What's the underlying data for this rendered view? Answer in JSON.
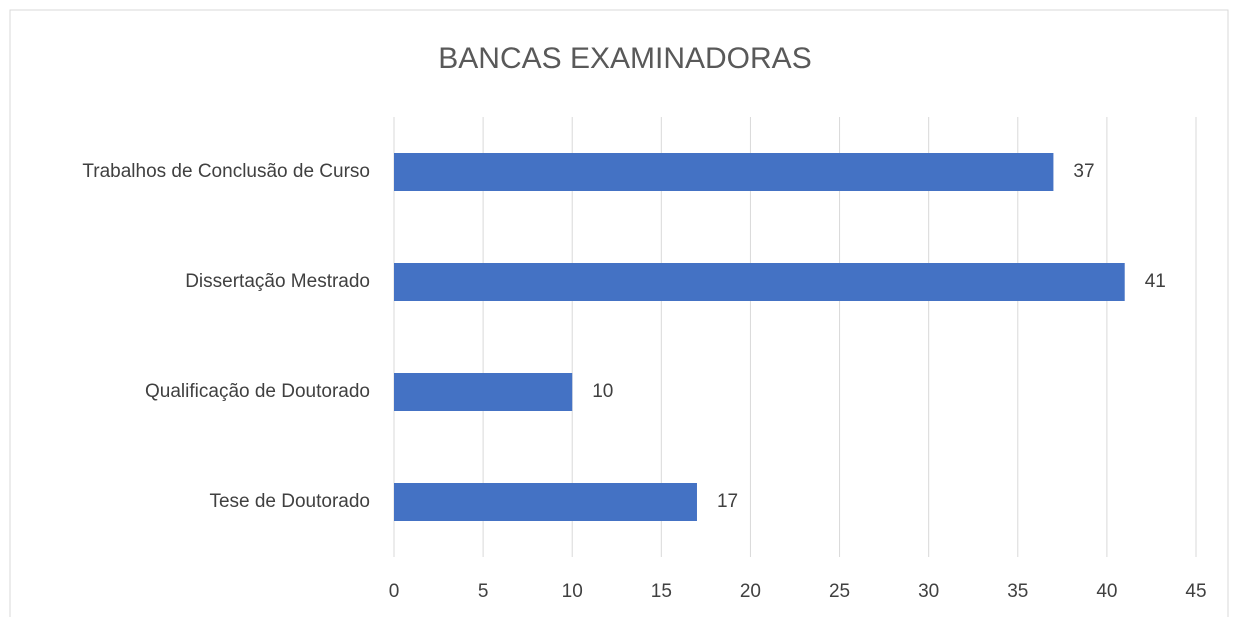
{
  "chart_data": {
    "type": "barh",
    "title": "BANCAS EXAMINADORAS",
    "categories": [
      "Trabalhos de Conclusão de Curso",
      "Dissertação Mestrado",
      "Qualificação de Doutorado",
      "Tese de Doutorado"
    ],
    "values": [
      37,
      41,
      10,
      17
    ],
    "color": "#4472c4",
    "xlim": [
      0,
      45
    ],
    "xticks": [
      0,
      5,
      10,
      15,
      20,
      25,
      30,
      35,
      40,
      45
    ],
    "grid": true
  }
}
